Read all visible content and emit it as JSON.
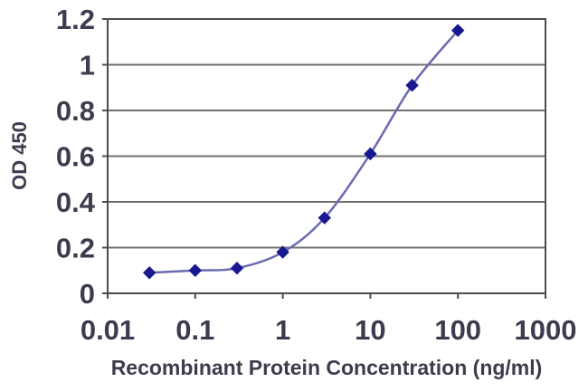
{
  "chart_data": {
    "type": "line",
    "title": "",
    "xlabel": "Recombinant Protein Concentration (ng/ml)",
    "ylabel": "OD 450",
    "x_scale": "log10",
    "x": [
      0.03,
      0.1,
      0.3,
      1,
      3,
      10,
      30,
      100
    ],
    "y": [
      0.09,
      0.1,
      0.11,
      0.18,
      0.33,
      0.61,
      0.91,
      1.15
    ],
    "xlim": [
      0.01,
      1000
    ],
    "ylim": [
      0,
      1.2
    ],
    "x_tick_labels": [
      "0.01",
      "0.1",
      "1",
      "10",
      "100",
      "1000"
    ],
    "x_tick_values": [
      0.01,
      0.1,
      1,
      10,
      100,
      1000
    ],
    "y_tick_labels": [
      "0",
      "0.2",
      "0.4",
      "0.6",
      "0.8",
      "1",
      "1.2"
    ],
    "y_tick_values": [
      0,
      0.2,
      0.4,
      0.6,
      0.8,
      1,
      1.2
    ],
    "grid": "horizontal",
    "legend": "none",
    "marker_shape": "diamond",
    "line_style": "smooth",
    "colors": {
      "line": "#6A6AB0",
      "marker": "#181890",
      "gridline": "#707070",
      "axis": "#4D4D4D",
      "text": "#3C3C4E",
      "background": "#FFFFFF"
    }
  }
}
